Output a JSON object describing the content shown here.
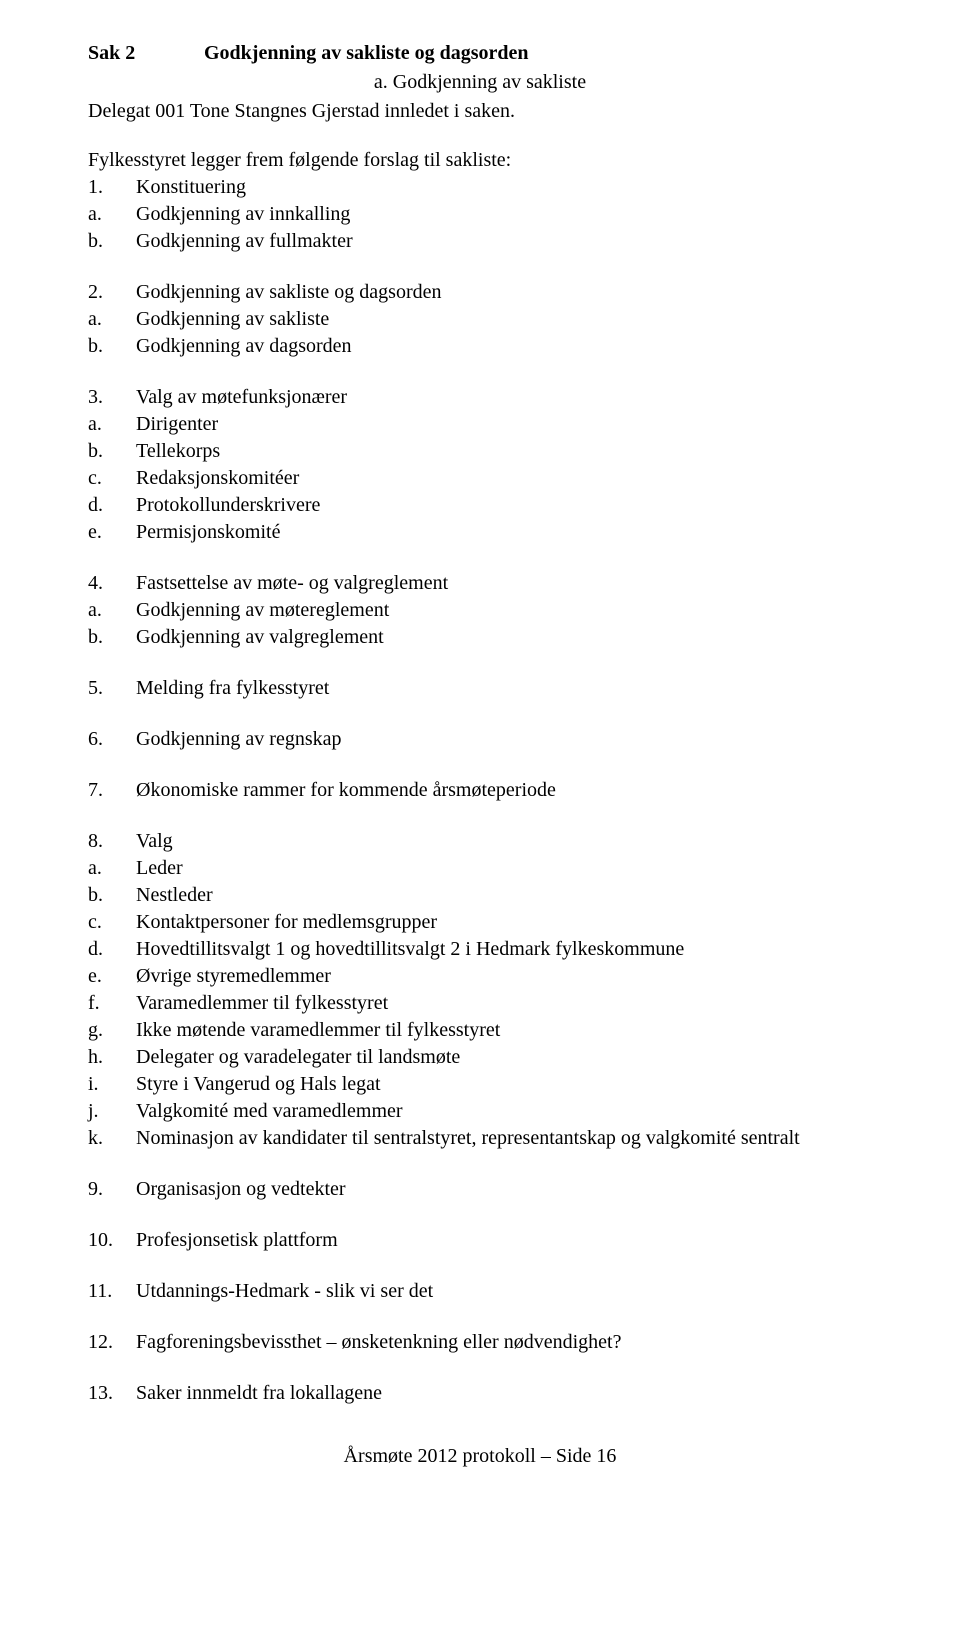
{
  "header": {
    "sak_label": "Sak 2",
    "sak_title": "Godkjenning av sakliste og dagsorden",
    "sub_a": "a.   Godkjenning av sakliste",
    "intro": "Delegat 001 Tone Stangnes Gjerstad innledet i saken.",
    "lead": "Fylkesstyret legger frem følgende forslag til sakliste:"
  },
  "s1": {
    "n": "1.",
    "t": "Konstituering",
    "a": "Godkjenning av innkalling",
    "b": "Godkjenning av fullmakter"
  },
  "s2": {
    "n": "2.",
    "t": "Godkjenning av sakliste og dagsorden",
    "a": "Godkjenning av sakliste",
    "b": "Godkjenning av dagsorden"
  },
  "s3": {
    "n": "3.",
    "t": "Valg av møtefunksjonærer",
    "a": "Dirigenter",
    "b": "Tellekorps",
    "c": "Redaksjonskomitéer",
    "d": "Protokollunderskrivere",
    "e": "Permisjonskomité"
  },
  "s4": {
    "n": "4.",
    "t": "Fastsettelse av møte- og valgreglement",
    "a": "Godkjenning av møtereglement",
    "b": "Godkjenning av valgreglement"
  },
  "s5": {
    "n": "5.",
    "t": "Melding fra fylkesstyret"
  },
  "s6": {
    "n": "6.",
    "t": "Godkjenning av regnskap"
  },
  "s7": {
    "n": "7.",
    "t": "Økonomiske rammer for kommende årsmøteperiode"
  },
  "s8": {
    "n": "8.",
    "t": "Valg",
    "a": "Leder",
    "b": "Nestleder",
    "c": "Kontaktpersoner for medlemsgrupper",
    "d": "Hovedtillitsvalgt 1 og hovedtillitsvalgt 2 i Hedmark fylkeskommune",
    "e": "Øvrige styremedlemmer",
    "f": "Varamedlemmer til fylkesstyret",
    "g": "Ikke møtende varamedlemmer til fylkesstyret",
    "h": "Delegater og varadelegater til landsmøte",
    "i": "Styre i Vangerud og Hals legat",
    "j": "Valgkomité med varamedlemmer",
    "k": "Nominasjon av kandidater til sentralstyret, representantskap og valgkomité sentralt"
  },
  "s9": {
    "n": "9.",
    "t": "Organisasjon og vedtekter"
  },
  "s10": {
    "n": "10.",
    "t": "Profesjonsetisk plattform"
  },
  "s11": {
    "n": "11.",
    "t": "Utdannings-Hedmark - slik vi ser det"
  },
  "s12": {
    "n": "12.",
    "t": "Fagforeningsbevissthet – ønsketenkning eller nødvendighet?"
  },
  "s13": {
    "n": "13.",
    "t": "Saker innmeldt fra lokallagene"
  },
  "markers": {
    "a": "a.",
    "b": "b.",
    "c": "c.",
    "d": "d.",
    "e": "e.",
    "f": "f.",
    "g": "g.",
    "h": "h.",
    "i": "i.",
    "j": "j.",
    "k": "k."
  },
  "footer": "Årsmøte 2012 protokoll – Side 16"
}
